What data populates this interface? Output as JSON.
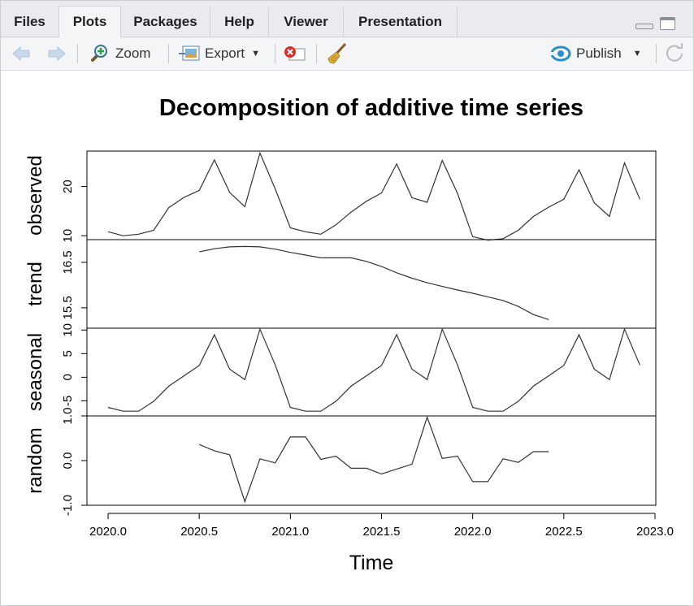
{
  "tabs": [
    {
      "label": "Files",
      "active": false
    },
    {
      "label": "Plots",
      "active": true
    },
    {
      "label": "Packages",
      "active": false
    },
    {
      "label": "Help",
      "active": false
    },
    {
      "label": "Viewer",
      "active": false
    },
    {
      "label": "Presentation",
      "active": false
    }
  ],
  "toolbar": {
    "zoom_label": "Zoom",
    "export_label": "Export",
    "publish_label": "Publish",
    "icons": {
      "back": "arrow-left-icon",
      "forward": "arrow-right-icon",
      "zoom": "magnifier-plus-icon",
      "export": "export-image-icon",
      "remove": "remove-plot-icon",
      "clear": "broom-icon",
      "publish": "publish-icon",
      "refresh": "refresh-icon"
    }
  },
  "chart_data": {
    "type": "line",
    "title": "Decomposition of additive time series",
    "xlabel": "Time",
    "xlim": [
      2020.0,
      2023.0
    ],
    "x_ticks": [
      "2020.0",
      "2020.5",
      "2021.0",
      "2021.5",
      "2022.0",
      "2022.5",
      "2023.0"
    ],
    "panels": [
      {
        "name": "observed",
        "ylabel": "observed",
        "ylim": [
          9.2,
          27.2
        ],
        "y_ticks": [
          "10",
          "20"
        ],
        "x": [
          2020.0,
          2020.083,
          2020.167,
          2020.25,
          2020.333,
          2020.417,
          2020.5,
          2020.583,
          2020.667,
          2020.75,
          2020.833,
          2020.917,
          2021.0,
          2021.083,
          2021.167,
          2021.25,
          2021.333,
          2021.417,
          2021.5,
          2021.583,
          2021.667,
          2021.75,
          2021.833,
          2021.917,
          2022.0,
          2022.083,
          2022.167,
          2022.25,
          2022.333,
          2022.417,
          2022.5,
          2022.583,
          2022.667,
          2022.75,
          2022.833,
          2022.917
        ],
        "y": [
          10.8,
          10.0,
          10.3,
          11.1,
          15.7,
          17.8,
          19.2,
          25.4,
          18.8,
          15.9,
          26.8,
          19.5,
          11.6,
          10.8,
          10.3,
          12.2,
          14.8,
          17.0,
          18.7,
          24.6,
          17.7,
          16.8,
          25.3,
          18.6,
          9.8,
          9.1,
          9.4,
          11.1,
          13.9,
          15.8,
          17.4,
          23.4,
          16.7,
          13.9,
          24.8,
          17.4
        ]
      },
      {
        "name": "trend",
        "ylabel": "trend",
        "ylim": [
          15.05,
          17.0
        ],
        "y_ticks": [
          "15.5",
          "16.5"
        ],
        "x": [
          2020.5,
          2020.583,
          2020.667,
          2020.75,
          2020.833,
          2020.917,
          2021.0,
          2021.083,
          2021.167,
          2021.25,
          2021.333,
          2021.417,
          2021.5,
          2021.583,
          2021.667,
          2021.75,
          2021.833,
          2021.917,
          2022.0,
          2022.083,
          2022.167,
          2022.25,
          2022.333,
          2022.417
        ],
        "y": [
          16.73,
          16.8,
          16.84,
          16.85,
          16.84,
          16.79,
          16.72,
          16.66,
          16.6,
          16.6,
          16.6,
          16.52,
          16.41,
          16.27,
          16.15,
          16.05,
          15.97,
          15.89,
          15.82,
          15.74,
          15.66,
          15.53,
          15.35,
          15.24
        ]
      },
      {
        "name": "seasonal",
        "ylabel": "seasonal",
        "ylim": [
          -8.2,
          10.4
        ],
        "y_ticks": [
          "-5",
          "0",
          "5",
          "10"
        ],
        "x": [
          2020.0,
          2020.083,
          2020.167,
          2020.25,
          2020.333,
          2020.417,
          2020.5,
          2020.583,
          2020.667,
          2020.75,
          2020.833,
          2020.917,
          2021.0,
          2021.083,
          2021.167,
          2021.25,
          2021.333,
          2021.417,
          2021.5,
          2021.583,
          2021.667,
          2021.75,
          2021.833,
          2021.917,
          2022.0,
          2022.083,
          2022.167,
          2022.25,
          2022.333,
          2022.417,
          2022.5,
          2022.583,
          2022.667,
          2022.75,
          2022.833,
          2022.917
        ],
        "y": [
          -6.4,
          -7.2,
          -7.2,
          -5.1,
          -1.9,
          0.3,
          2.5,
          9.0,
          1.7,
          -0.5,
          10.2,
          2.6,
          -6.4,
          -7.2,
          -7.2,
          -5.1,
          -1.9,
          0.3,
          2.5,
          9.0,
          1.7,
          -0.5,
          10.2,
          2.6,
          -6.4,
          -7.2,
          -7.2,
          -5.1,
          -1.9,
          0.3,
          2.5,
          9.0,
          1.7,
          -0.5,
          10.2,
          2.6
        ]
      },
      {
        "name": "random",
        "ylabel": "random",
        "ylim": [
          -1.0,
          1.0
        ],
        "y_ticks": [
          "-1.0",
          "0.0",
          "1.0"
        ],
        "x": [
          2020.5,
          2020.583,
          2020.667,
          2020.75,
          2020.833,
          2020.917,
          2021.0,
          2021.083,
          2021.167,
          2021.25,
          2021.333,
          2021.417,
          2021.5,
          2021.583,
          2021.667,
          2021.75,
          2021.833,
          2021.917,
          2022.0,
          2022.083,
          2022.167,
          2022.25,
          2022.333,
          2022.417
        ],
        "y": [
          0.36,
          0.22,
          0.13,
          -0.92,
          0.04,
          -0.05,
          0.53,
          0.53,
          0.03,
          0.1,
          -0.17,
          -0.17,
          -0.3,
          -0.19,
          -0.08,
          0.97,
          0.05,
          0.1,
          -0.47,
          -0.47,
          0.04,
          -0.04,
          0.2,
          0.2
        ]
      }
    ]
  }
}
